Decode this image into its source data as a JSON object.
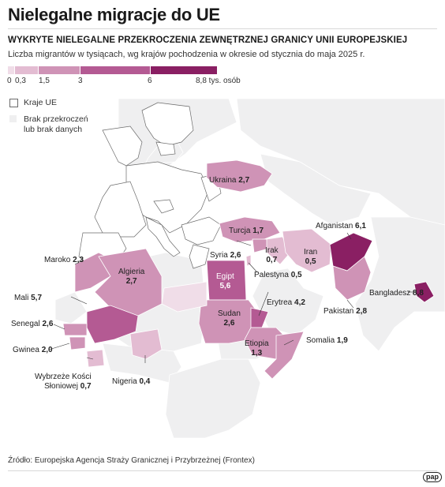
{
  "title": "Nielegalne migracje do UE",
  "subtitle": "WYKRYTE NIELEGALNE PRZEKROCZENIA ZEWNĘTRZNEJ GRANICY UNII EUROPEJSKIEJ",
  "description": "Liczba migrantów w tysiącach, wg krajów pochodzenia w okresie od stycznia do maja 2025 r.",
  "scale": {
    "ticks": [
      "0",
      "0,3",
      "1,5",
      "3",
      "6",
      "8,8 tys. osób"
    ],
    "colors": [
      "#f0dde8",
      "#e3bcd2",
      "#cf93b6",
      "#b45a93",
      "#8a1f63"
    ]
  },
  "legend": {
    "eu": "Kraje UE",
    "no_data_line1": "Brak przekroczeń",
    "no_data_line2": "lub brak danych"
  },
  "countries": [
    {
      "name": "Ukraina",
      "value": "2,7"
    },
    {
      "name": "Turcja",
      "value": "1,7"
    },
    {
      "name": "Afganistan",
      "value": "6,1"
    },
    {
      "name": "Maroko",
      "value": "2,3"
    },
    {
      "name": "Algieria",
      "value": "2,7"
    },
    {
      "name": "Syria",
      "value": "2,6"
    },
    {
      "name": "Irak",
      "value": "0,7"
    },
    {
      "name": "Iran",
      "value": "0,5"
    },
    {
      "name": "Palestyna",
      "value": "0,5"
    },
    {
      "name": "Mali",
      "value": "5,7"
    },
    {
      "name": "Egipt",
      "value": "5,6"
    },
    {
      "name": "Bangladesz",
      "value": "8,8"
    },
    {
      "name": "Erytrea",
      "value": "4,2"
    },
    {
      "name": "Pakistan",
      "value": "2,8"
    },
    {
      "name": "Senegal",
      "value": "2,6"
    },
    {
      "name": "Sudan",
      "value": "2,6"
    },
    {
      "name": "Gwinea",
      "value": "2,0"
    },
    {
      "name": "Etiopia",
      "value": "1,3"
    },
    {
      "name": "Somalia",
      "value": "1,9"
    },
    {
      "name": "Wybrzeże Kości",
      "value": ""
    },
    {
      "name": "Słoniowej",
      "value": "0,7"
    },
    {
      "name": "Nigeria",
      "value": "0,4"
    }
  ],
  "source": "Źródło: Europejska Agencja Straży Granicznej i Przybrzeżnej (Frontex)",
  "logo": "pap"
}
